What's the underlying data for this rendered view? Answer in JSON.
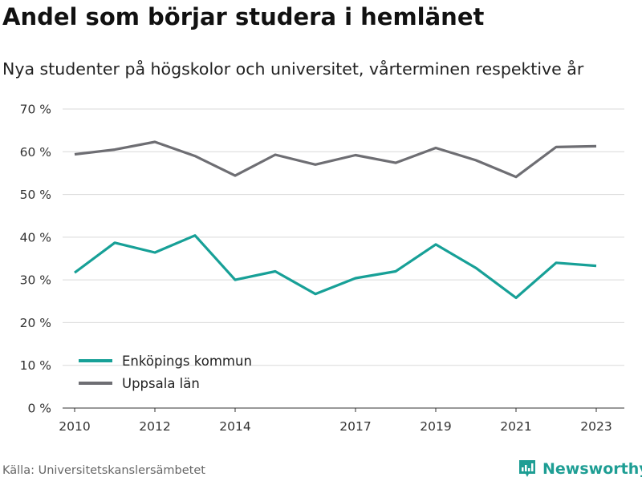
{
  "header": {
    "title": "Andel som börjar studera i hemlänet",
    "subtitle": "Nya studenter på högskolor och universitet, vårterminen respektive år"
  },
  "footer": {
    "source": "Källa: Universitetskanslersämbetet",
    "brand": "Newsworthy",
    "brand_icon": "bar-chart-bubble-icon"
  },
  "colors": {
    "series_1": "#17a097",
    "series_2": "#6e6e73",
    "grid": "#d9d9d9",
    "axis": "#333333",
    "brand": "#1e9e94"
  },
  "chart_data": {
    "type": "line",
    "x": [
      2010,
      2011,
      2012,
      2013,
      2014,
      2015,
      2016,
      2017,
      2018,
      2019,
      2020,
      2021,
      2022,
      2023
    ],
    "x_ticks": [
      2010,
      2012,
      2014,
      2017,
      2019,
      2021,
      2023
    ],
    "x_tick_labels": [
      "2010",
      "2012",
      "2014",
      "2017",
      "2019",
      "2021",
      "2023"
    ],
    "xlim": [
      2009.7,
      2023.7
    ],
    "ylim": [
      0,
      70
    ],
    "y_ticks": [
      0,
      10,
      20,
      30,
      40,
      50,
      60,
      70
    ],
    "y_tick_labels": [
      "0 %",
      "10 %",
      "20 %",
      "30 %",
      "40 %",
      "50 %",
      "60 %",
      "70 %"
    ],
    "grid": "horizontal",
    "legend_position": "bottom-left",
    "series": [
      {
        "name": "Enköpings kommun",
        "values": [
          31.7,
          38.7,
          36.4,
          40.4,
          30.0,
          32.0,
          26.7,
          30.4,
          32.0,
          38.3,
          32.8,
          25.8,
          34.0,
          33.3
        ]
      },
      {
        "name": "Uppsala län",
        "values": [
          59.4,
          60.5,
          62.3,
          59.0,
          54.4,
          59.3,
          57.0,
          59.2,
          57.4,
          60.9,
          58.0,
          54.1,
          61.1,
          61.3
        ]
      }
    ]
  }
}
